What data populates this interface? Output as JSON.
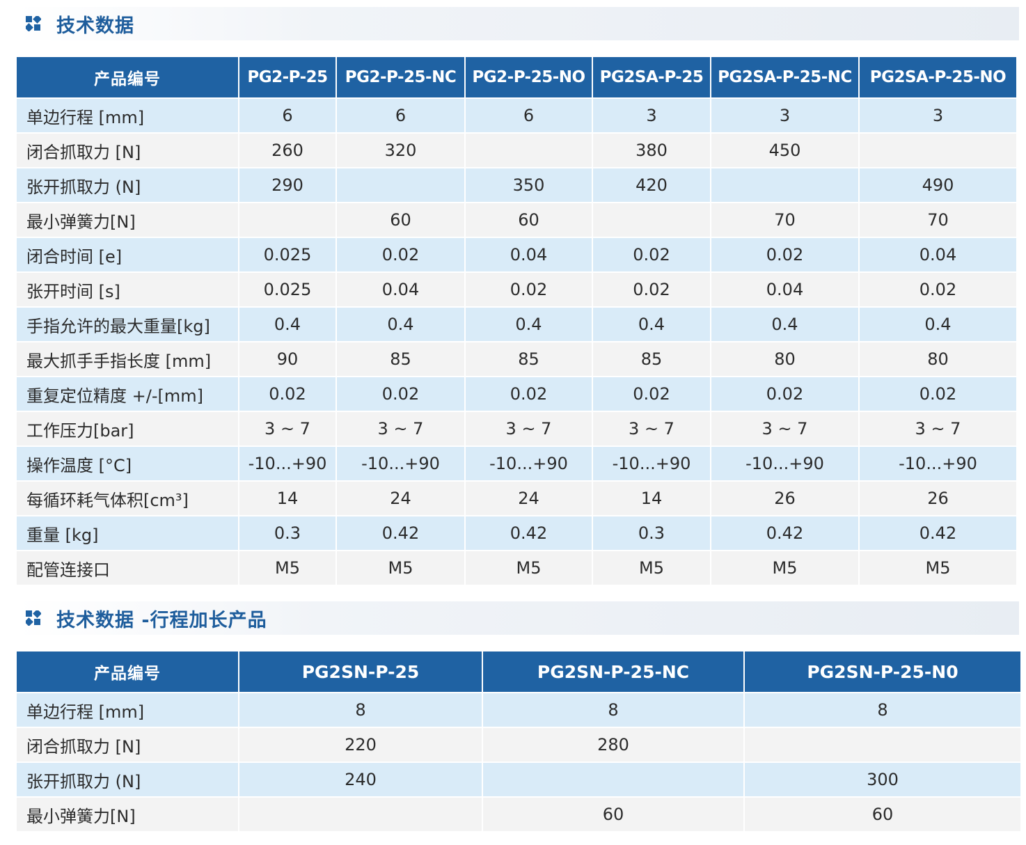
{
  "section1": {
    "title": "技术数据",
    "icon": "brand-logo-icon",
    "table": {
      "header": [
        "产品编号",
        "PG2-P-25",
        "PG2-P-25-NC",
        "PG2-P-25-NO",
        "PG2SA-P-25",
        "PG2SA-P-25-NC",
        "PG2SA-P-25-NO"
      ],
      "rows": [
        [
          "单边行程 [mm]",
          "6",
          "6",
          "6",
          "3",
          "3",
          "3"
        ],
        [
          "闭合抓取力 [N]",
          "260",
          "320",
          "",
          "380",
          "450",
          ""
        ],
        [
          "张开抓取力 (N]",
          "290",
          "",
          "350",
          "420",
          "",
          "490"
        ],
        [
          "最小弹簧力[N]",
          "",
          "60",
          "60",
          "",
          "70",
          "70"
        ],
        [
          "闭合时间 [e]",
          "0.025",
          "0.02",
          "0.04",
          "0.02",
          "0.02",
          "0.04"
        ],
        [
          "张开时间 [s]",
          "0.025",
          "0.04",
          "0.02",
          "0.02",
          "0.04",
          "0.02"
        ],
        [
          "手指允许的最大重量[kg]",
          "0.4",
          "0.4",
          "0.4",
          "0.4",
          "0.4",
          "0.4"
        ],
        [
          "最大抓手手指长度 [mm]",
          "90",
          "85",
          "85",
          "85",
          "80",
          "80"
        ],
        [
          "重复定位精度 +/-[mm]",
          "0.02",
          "0.02",
          "0.02",
          "0.02",
          "0.02",
          "0.02"
        ],
        [
          "工作压力[bar]",
          "3 ~ 7",
          "3 ~ 7",
          "3 ~ 7",
          "3 ~ 7",
          "3 ~ 7",
          "3 ~ 7"
        ],
        [
          "操作温度 [°C]",
          "-10...+90",
          "-10...+90",
          "-10...+90",
          "-10...+90",
          "-10...+90",
          "-10...+90"
        ],
        [
          "每循环耗气体积[cm³]",
          "14",
          "24",
          "24",
          "14",
          "26",
          "26"
        ],
        [
          "重量 [kg]",
          "0.3",
          "0.42",
          "0.42",
          "0.3",
          "0.42",
          "0.42"
        ],
        [
          "配管连接口",
          "M5",
          "M5",
          "M5",
          "M5",
          "M5",
          "M5"
        ]
      ]
    }
  },
  "section2": {
    "title": "技术数据 -行程加长产品",
    "icon": "brand-logo-icon",
    "table": {
      "header": [
        "产品编号",
        "PG2SN-P-25",
        "PG2SN-P-25-NC",
        "PG2SN-P-25-N0"
      ],
      "rows": [
        [
          "单边行程 [mm]",
          "8",
          "8",
          "8"
        ],
        [
          "闭合抓取力 [N]",
          "220",
          "280",
          ""
        ],
        [
          "张开抓取力 (N]",
          "240",
          "",
          "300"
        ],
        [
          "最小弹簧力[N]",
          "",
          "60",
          "60"
        ]
      ]
    }
  },
  "colors": {
    "header_bg": "#1f62a3",
    "title_text": "#1e5d9c",
    "row_blue": "#d9ebf8",
    "row_gray": "#f3f3f3"
  }
}
